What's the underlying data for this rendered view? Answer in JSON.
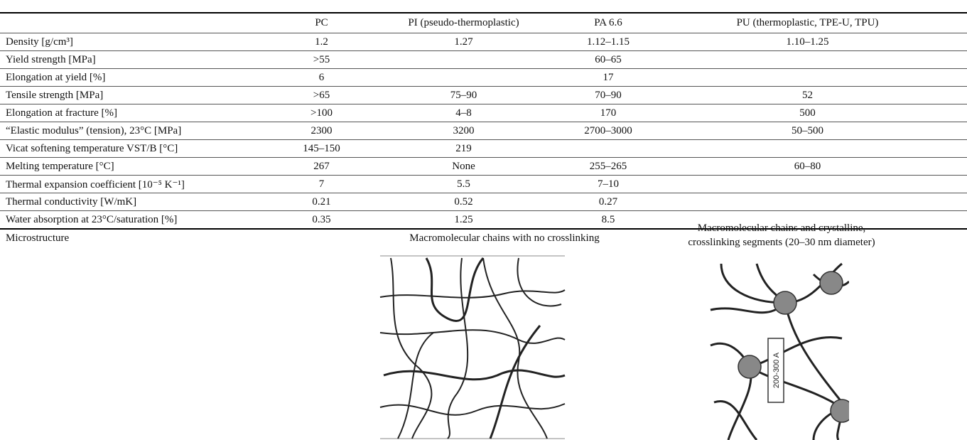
{
  "table": {
    "columns": [
      "PC",
      "PI (pseudo-thermoplastic)",
      "PA 6.6",
      "PU (thermoplastic, TPE-U, TPU)"
    ],
    "rows": [
      {
        "label": "Density [g/cm³]",
        "cells": [
          "1.2",
          "1.27",
          "1.12–1.15",
          "1.10–1.25"
        ]
      },
      {
        "label": "Yield strength [MPa]",
        "cells": [
          ">55",
          null,
          "60–65",
          null
        ]
      },
      {
        "label": "Elongation at yield [%]",
        "cells": [
          "6",
          null,
          "17",
          null
        ]
      },
      {
        "label": "Tensile strength [MPa]",
        "cells": [
          ">65",
          "75–90",
          "70–90",
          "52"
        ]
      },
      {
        "label": "Elongation at fracture [%]",
        "cells": [
          ">100",
          "4–8",
          "170",
          "500"
        ]
      },
      {
        "label": "“Elastic modulus” (tension), 23°C [MPa]",
        "cells": [
          "2300",
          "3200",
          "2700–3000",
          "50–500"
        ]
      },
      {
        "label": "Vicat softening temperature VST/B [°C]",
        "cells": [
          "145–150",
          "219",
          null,
          null
        ]
      },
      {
        "label": "Melting temperature [°C]",
        "cells": [
          "267",
          "None",
          "255–265",
          "60–80"
        ]
      },
      {
        "label": "Thermal expansion coefficient [10⁻⁵ K⁻¹]",
        "cells": [
          "7",
          "5.5",
          "7–10",
          null
        ]
      },
      {
        "label": "Thermal conductivity [W/mK]",
        "cells": [
          "0.21",
          "0.52",
          "0.27",
          null
        ]
      },
      {
        "label": "Water absorption at 23°C/saturation [%]",
        "cells": [
          "0.35",
          "1.25",
          "8.5",
          null
        ]
      }
    ]
  },
  "microstructure": {
    "label": "Microstructure",
    "caption_left": "Macromolecular chains with no crosslinking",
    "caption_right": [
      "Macromolecular chains and crystalline,",
      "crosslinking segments (20–30 nm diameter)"
    ],
    "scale_label": "200-300 A"
  }
}
